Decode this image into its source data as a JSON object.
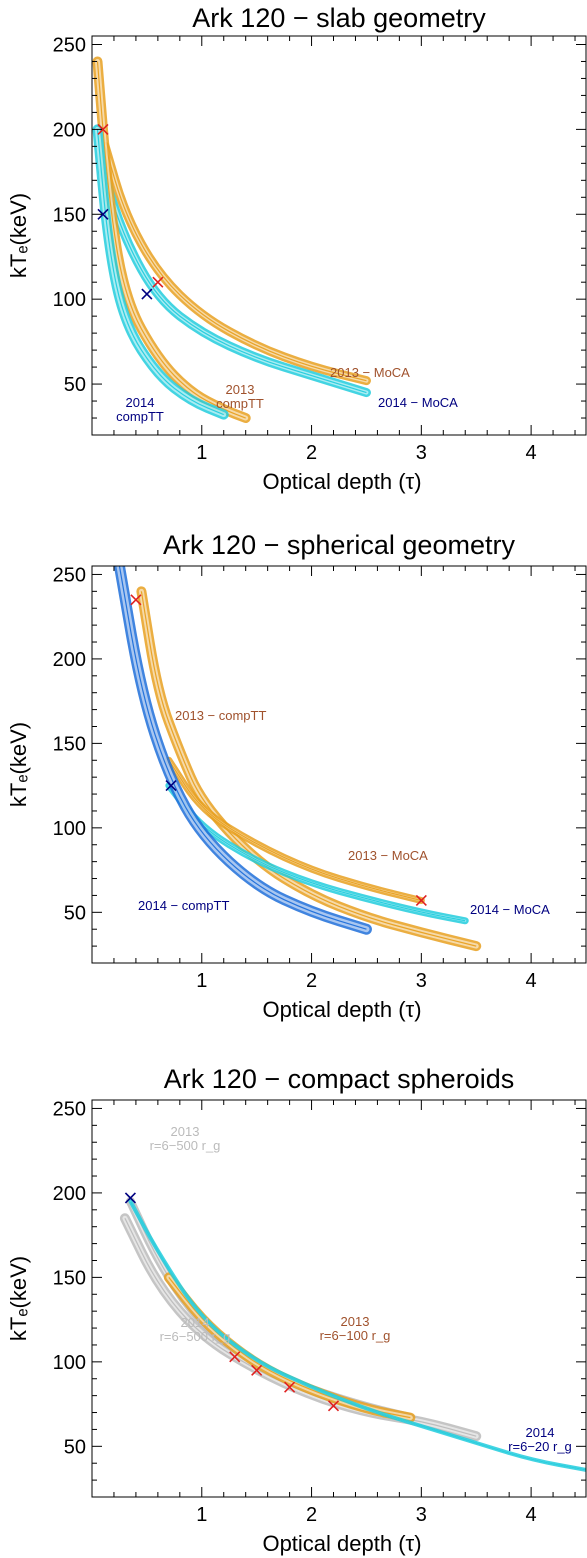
{
  "chart_data": [
    {
      "type": "contour",
      "title": "Ark 120 − slab geometry",
      "xlabel": "Optical depth (τ)",
      "ylabel": "kTₑ(keV)",
      "xlim": [
        0.0,
        4.5
      ],
      "ylim": [
        20,
        255
      ],
      "xticks": [
        1,
        2,
        3,
        4
      ],
      "yticks": [
        50,
        100,
        150,
        200,
        250
      ],
      "xticklabels": [
        "1",
        "2",
        "3",
        "4"
      ],
      "yticklabels": [
        "50",
        "100",
        "150",
        "200",
        "250"
      ],
      "series": [
        {
          "label_lines": [
            "2013 − MoCA"
          ],
          "color": "#E8A020",
          "labelColor": "#A0522D",
          "width": 9,
          "points": [
            [
              0.12,
              190
            ],
            [
              0.3,
              150
            ],
            [
              0.6,
              115
            ],
            [
              1.0,
              90
            ],
            [
              1.5,
              72
            ],
            [
              2.0,
              60
            ],
            [
              2.5,
              52
            ]
          ]
        },
        {
          "label_lines": [
            "2014 − MoCA"
          ],
          "color": "#22CCDD",
          "labelColor": "#000080",
          "width": 9,
          "points": [
            [
              0.1,
              175
            ],
            [
              0.3,
              135
            ],
            [
              0.6,
              100
            ],
            [
              1.0,
              80
            ],
            [
              1.5,
              65
            ],
            [
              2.0,
              55
            ],
            [
              2.5,
              45
            ]
          ]
        },
        {
          "label_lines": [
            "2013",
            "compTT"
          ],
          "color": "#E8A020",
          "labelColor": "#A0522D",
          "width": 10,
          "points": [
            [
              0.05,
              240
            ],
            [
              0.15,
              160
            ],
            [
              0.3,
              100
            ],
            [
              0.6,
              65
            ],
            [
              0.9,
              45
            ],
            [
              1.2,
              35
            ],
            [
              1.4,
              30
            ]
          ]
        },
        {
          "label_lines": [
            "2014",
            "compTT"
          ],
          "color": "#22CCDD",
          "labelColor": "#000080",
          "width": 10,
          "points": [
            [
              0.05,
              200
            ],
            [
              0.15,
              130
            ],
            [
              0.3,
              85
            ],
            [
              0.6,
              55
            ],
            [
              0.9,
              40
            ],
            [
              1.2,
              32
            ]
          ]
        }
      ],
      "best_fits": [
        {
          "x": 0.1,
          "y": 200,
          "color": "#E02020"
        },
        {
          "x": 0.1,
          "y": 150,
          "color": "#000080"
        },
        {
          "x": 0.6,
          "y": 110,
          "color": "#E02020"
        },
        {
          "x": 0.5,
          "y": 103,
          "color": "#000080"
        }
      ]
    },
    {
      "type": "contour",
      "title": "Ark 120 − spherical geometry",
      "xlabel": "Optical depth (τ)",
      "ylabel": "kTₑ(keV)",
      "xlim": [
        0.0,
        4.5
      ],
      "ylim": [
        20,
        255
      ],
      "xticks": [
        1,
        2,
        3,
        4
      ],
      "yticks": [
        50,
        100,
        150,
        200,
        250
      ],
      "xticklabels": [
        "1",
        "2",
        "3",
        "4"
      ],
      "yticklabels": [
        "50",
        "100",
        "150",
        "200",
        "250"
      ],
      "series": [
        {
          "label_lines": [
            "2013 − compTT"
          ],
          "color": "#E8A020",
          "labelColor": "#A0522D",
          "width": 10,
          "points": [
            [
              0.45,
              240
            ],
            [
              0.6,
              180
            ],
            [
              0.8,
              145
            ],
            [
              1.0,
              115
            ],
            [
              1.5,
              80
            ],
            [
              2.0,
              60
            ],
            [
              2.5,
              47
            ],
            [
              3.0,
              38
            ],
            [
              3.5,
              30
            ]
          ]
        },
        {
          "label_lines": [
            "2013 − MoCA"
          ],
          "color": "#E8A020",
          "labelColor": "#A0522D",
          "width": 7,
          "points": [
            [
              0.7,
              140
            ],
            [
              1.0,
              110
            ],
            [
              1.5,
              90
            ],
            [
              2.0,
              75
            ],
            [
              2.5,
              65
            ],
            [
              3.0,
              57
            ]
          ]
        },
        {
          "label_lines": [
            "2014 − MoCA"
          ],
          "color": "#22CCDD",
          "labelColor": "#000080",
          "width": 7,
          "points": [
            [
              0.7,
              125
            ],
            [
              1.0,
              100
            ],
            [
              1.5,
              80
            ],
            [
              2.0,
              67
            ],
            [
              2.5,
              58
            ],
            [
              3.0,
              50
            ],
            [
              3.4,
              45
            ]
          ]
        },
        {
          "label_lines": [
            "2014 − compTT"
          ],
          "color": "#1E6FD9",
          "labelColor": "#000080",
          "width": 11,
          "points": [
            [
              0.25,
              255
            ],
            [
              0.45,
              180
            ],
            [
              0.7,
              130
            ],
            [
              1.0,
              95
            ],
            [
              1.5,
              65
            ],
            [
              2.0,
              50
            ],
            [
              2.5,
              40
            ]
          ]
        }
      ],
      "best_fits": [
        {
          "x": 0.4,
          "y": 235,
          "color": "#E02020"
        },
        {
          "x": 0.72,
          "y": 125,
          "color": "#000080"
        },
        {
          "x": 3.0,
          "y": 57,
          "color": "#E02020"
        }
      ]
    },
    {
      "type": "contour",
      "title": "Ark 120 − compact spheroids",
      "xlabel": "Optical depth (τ)",
      "ylabel": "kTₑ(keV)",
      "xlim": [
        0.0,
        4.5
      ],
      "ylim": [
        20,
        255
      ],
      "xticks": [
        1,
        2,
        3,
        4
      ],
      "yticks": [
        50,
        100,
        150,
        200,
        250
      ],
      "xticklabels": [
        "1",
        "2",
        "3",
        "4"
      ],
      "yticklabels": [
        "50",
        "100",
        "150",
        "200",
        "250"
      ],
      "series": [
        {
          "label_lines": [
            "2013",
            "r=6−500 r_g"
          ],
          "color": "#BBBBBB",
          "labelColor": "#BBBBBB",
          "width": 9,
          "points": [
            [
              0.35,
              195
            ],
            [
              0.6,
              160
            ],
            [
              0.9,
              130
            ],
            [
              1.3,
              105
            ],
            [
              1.8,
              88
            ],
            [
              2.4,
              75
            ],
            [
              2.9,
              67
            ]
          ]
        },
        {
          "label_lines": [
            "2014",
            "r=6−500 r_g"
          ],
          "color": "#BBBBBB",
          "labelColor": "#BBBBBB",
          "width": 10,
          "points": [
            [
              0.3,
              185
            ],
            [
              0.6,
              145
            ],
            [
              1.0,
              115
            ],
            [
              1.5,
              95
            ],
            [
              2.0,
              80
            ],
            [
              2.5,
              70
            ],
            [
              3.0,
              65
            ],
            [
              3.5,
              56
            ]
          ]
        },
        {
          "label_lines": [
            "2013",
            "r=6−100 r_g"
          ],
          "color": "#E8A020",
          "labelColor": "#A0522D",
          "width": 10,
          "points": [
            [
              0.7,
              150
            ],
            [
              1.0,
              125
            ],
            [
              1.3,
              108
            ],
            [
              1.6,
              95
            ],
            [
              2.0,
              83
            ],
            [
              2.5,
              72
            ],
            [
              2.9,
              67
            ]
          ]
        },
        {
          "label_lines": [
            "2014",
            "r=6−20 r_g"
          ],
          "color": "#22CCDD",
          "labelColor": "#000080",
          "width": 4,
          "points": [
            [
              0.35,
              195
            ],
            [
              0.6,
              165
            ],
            [
              1.0,
              125
            ],
            [
              1.5,
              100
            ],
            [
              2.0,
              85
            ],
            [
              2.5,
              72
            ],
            [
              3.0,
              62
            ],
            [
              3.5,
              52
            ],
            [
              4.0,
              42
            ],
            [
              4.5,
              36
            ]
          ]
        }
      ],
      "best_fits": [
        {
          "x": 0.35,
          "y": 197,
          "color": "#000080"
        },
        {
          "x": 1.3,
          "y": 103,
          "color": "#E02020"
        },
        {
          "x": 1.5,
          "y": 95,
          "color": "#E02020"
        },
        {
          "x": 1.8,
          "y": 85,
          "color": "#E02020"
        },
        {
          "x": 2.2,
          "y": 74,
          "color": "#E02020"
        }
      ]
    }
  ]
}
